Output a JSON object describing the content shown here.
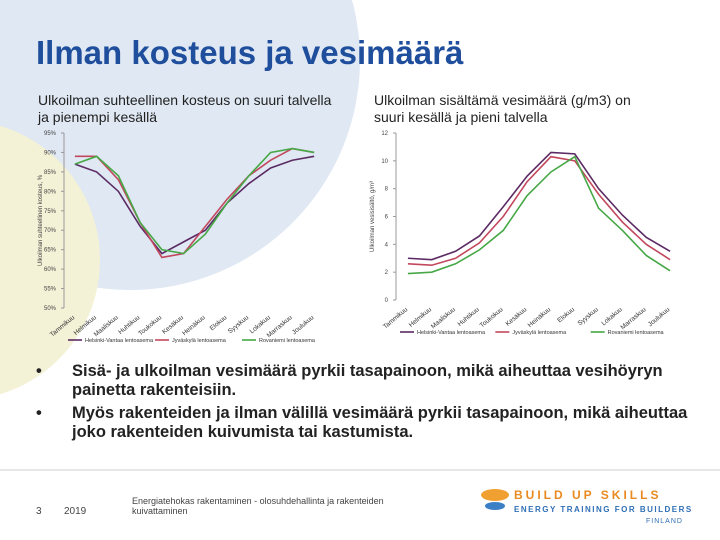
{
  "title": "Ilman kosteus ja vesimäärä",
  "bullets": [
    "Sisä- ja ulkoilman vesimäärä pyrkii tasapainoon, mikä aiheuttaa vesihöyryn painetta rakenteisiin.",
    "Myös rakenteiden ja ilman välillä vesimäärä pyrkii tasapainoon, mikä aiheuttaa joko rakenteiden kuivumista tai kastumista."
  ],
  "footer": {
    "page": "3",
    "year": "2019",
    "text": "Energiatehokas rakentaminen - olosuhdehallinta ja rakenteiden kuivattaminen",
    "logo": "BUILD UP SKILLS",
    "logo_sub": "ENERGY TRAINING FOR BUILDERS",
    "logo_country": "FINLAND"
  },
  "chart_data": [
    {
      "type": "line",
      "title": "Ulkoilman suhteellinen kosteus on suuri talvella ja pienempi kesällä",
      "y_label": "Ulkoilman suhteellinen kosteus, %",
      "categories": [
        "Tammikuu",
        "Helmikuu",
        "Maaliskuu",
        "Huhtikuu",
        "Toukokuu",
        "Kesäkuu",
        "Heinäkuu",
        "Elokuu",
        "Syyskuu",
        "Lokakuu",
        "Marraskuu",
        "Joulukuu"
      ],
      "ylim": [
        50,
        95
      ],
      "yticks": [
        {
          "value": 50,
          "label": "50%"
        },
        {
          "value": 55,
          "label": "55%"
        },
        {
          "value": 60,
          "label": "60%"
        },
        {
          "value": 65,
          "label": "65%"
        },
        {
          "value": 70,
          "label": "70%"
        },
        {
          "value": 75,
          "label": "75%"
        },
        {
          "value": 80,
          "label": "80%"
        },
        {
          "value": 85,
          "label": "85%"
        },
        {
          "value": 90,
          "label": "90%"
        },
        {
          "value": 95,
          "label": "95%"
        }
      ],
      "series": [
        {
          "name": "Helsinki-Vantaa lentoasema",
          "color": "#5b2a63",
          "values": [
            87,
            85,
            80,
            71,
            64,
            67,
            70,
            77,
            82,
            86,
            88,
            89
          ]
        },
        {
          "name": "Jyväskylä lentoasema",
          "color": "#c2485e",
          "values": [
            89,
            89,
            83,
            72,
            63,
            64,
            71,
            78,
            84,
            88,
            91,
            90
          ]
        },
        {
          "name": "Rovaniemi lentoasema",
          "color": "#46a846",
          "values": [
            87,
            89,
            84,
            72,
            65,
            64,
            69,
            77,
            84,
            90,
            91,
            90
          ]
        }
      ]
    },
    {
      "type": "line",
      "title": "Ulkoilman sisältämä vesimäärä (g/m3) on suuri kesällä ja pieni talvella",
      "y_label": "Ulkoilman vesisisältö, g/m³",
      "categories": [
        "Tammikuu",
        "Helmikuu",
        "Maaliskuu",
        "Huhtikuu",
        "Toukokuu",
        "Kesäkuu",
        "Heinäkuu",
        "Elokuu",
        "Syyskuu",
        "Lokakuu",
        "Marraskuu",
        "Joulukuu"
      ],
      "ylim": [
        0,
        12
      ],
      "yticks": [
        0,
        2,
        4,
        6,
        8,
        10,
        12
      ],
      "series": [
        {
          "name": "Helsinki-Vantaa lentoasema",
          "color": "#5b2a63",
          "values": [
            3.0,
            2.9,
            3.5,
            4.6,
            6.7,
            8.9,
            10.6,
            10.5,
            8.0,
            6.1,
            4.5,
            3.5
          ]
        },
        {
          "name": "Jyväskylä lentoasema",
          "color": "#c2485e",
          "values": [
            2.6,
            2.5,
            3.0,
            4.1,
            6.0,
            8.5,
            10.3,
            10.0,
            7.6,
            5.6,
            4.0,
            2.9
          ]
        },
        {
          "name": "Rovaniemi lentoasema",
          "color": "#46a846",
          "values": [
            1.9,
            2.0,
            2.6,
            3.6,
            5.0,
            7.5,
            9.2,
            10.3,
            6.6,
            5.0,
            3.2,
            2.1
          ]
        }
      ]
    }
  ]
}
